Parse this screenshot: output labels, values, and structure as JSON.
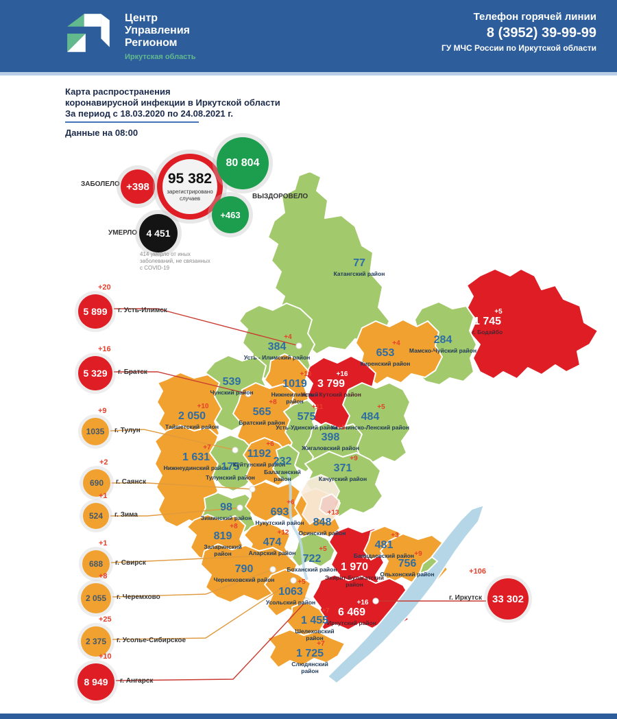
{
  "header": {
    "org_line1": "Центр",
    "org_line2": "Управления",
    "org_line3": "Регионом",
    "org_region": "Иркутская область",
    "hotline_label": "Телефон горячей линии",
    "hotline_phone": "8 (3952) 39-99-99",
    "hotline_org": "ГУ МЧС России по Иркутской области"
  },
  "title": {
    "line1": "Карта распространения",
    "line2": "коронавирусной инфекции в Иркутской области",
    "line3": "За период с 18.03.2020 по 24.08.2021 г.",
    "data_time": "Данные на 08:00"
  },
  "stats": {
    "infected_label": "ЗАБОЛЕЛО",
    "infected_delta": "+398",
    "total_value": "95 382",
    "total_caption": "зарегистрировано случаев",
    "recovered_value": "80 804",
    "recovered_label": "ВЫЗДОРОВЕЛО",
    "recovered_delta": "+463",
    "died_value": "4 451",
    "died_label": "УМЕРЛО",
    "footnote": "414 умерло от иных\nзаболеваний, не связанных\nс COVID-19"
  },
  "cities": [
    {
      "id": "ust_ilimsk",
      "name": "г. Усть-Илимск",
      "value": "5 899",
      "delta": "+20",
      "level": "red"
    },
    {
      "id": "bratsk",
      "name": "г. Братск",
      "value": "5 329",
      "delta": "+16",
      "level": "red"
    },
    {
      "id": "tulun",
      "name": "г. Тулун",
      "value": "1035",
      "delta": "+9",
      "level": "orange"
    },
    {
      "id": "sayansk",
      "name": "г. Саянск",
      "value": "690",
      "delta": "+2",
      "level": "orange"
    },
    {
      "id": "zima",
      "name": "г. Зима",
      "value": "524",
      "delta": "+1",
      "level": "orange"
    },
    {
      "id": "svirsk",
      "name": "г. Свирск",
      "value": "688",
      "delta": "+1",
      "level": "orange"
    },
    {
      "id": "cheremkhovo",
      "name": "г. Черемхово",
      "value": "2 055",
      "delta": "+8",
      "level": "orange"
    },
    {
      "id": "usolye_sibirskoe",
      "name": "г. Усолье-Сибирское",
      "value": "2 375",
      "delta": "+25",
      "level": "orange"
    },
    {
      "id": "angarsk",
      "name": "г. Ангарск",
      "value": "8 949",
      "delta": "+10",
      "level": "red"
    },
    {
      "id": "irkutsk",
      "name": "г. Иркутск",
      "value": "33 302",
      "delta": "+106",
      "level": "red"
    }
  ],
  "districts": [
    {
      "id": "katangsky",
      "name": "Катангский район",
      "value": "77",
      "delta": "",
      "level": "green"
    },
    {
      "id": "bodaibinsky",
      "name": "г. Бодайбо",
      "value": "1 745",
      "delta": "+5",
      "level": "red"
    },
    {
      "id": "mamsko_chuisky",
      "name": "Мамско-Чуйский район",
      "value": "284",
      "delta": "",
      "level": "green"
    },
    {
      "id": "kirensky",
      "name": "Киренский район",
      "value": "653",
      "delta": "+4",
      "level": "orange"
    },
    {
      "id": "ust_ilimsky",
      "name": "Усть - Илимский район",
      "value": "384",
      "delta": "+4",
      "level": "green"
    },
    {
      "id": "chunsky",
      "name": "Чунский район",
      "value": "539",
      "delta": "",
      "level": "green"
    },
    {
      "id": "nizhneilimsky",
      "name": "Нижнеилимский район",
      "value": "1019",
      "delta": "+10",
      "level": "orange"
    },
    {
      "id": "ust_kutsky",
      "name": "Усть - Кутский район",
      "value": "3 799",
      "delta": "+16",
      "level": "red"
    },
    {
      "id": "kazachinsko_lensky",
      "name": "Казачинско-Ленский район",
      "value": "484",
      "delta": "+5",
      "level": "green"
    },
    {
      "id": "taishetsky",
      "name": "Тайшетский район",
      "value": "2 050",
      "delta": "+10",
      "level": "orange"
    },
    {
      "id": "bratsky",
      "name": "Братский район",
      "value": "565",
      "delta": "+8",
      "level": "orange"
    },
    {
      "id": "ust_udinsky",
      "name": "Усть-Удинский район",
      "value": "575",
      "delta": "+11",
      "level": "green"
    },
    {
      "id": "zhigalovsky",
      "name": "Жигаловский район",
      "value": "398",
      "delta": "+5",
      "level": "green"
    },
    {
      "id": "kachugsky",
      "name": "Качугский район",
      "value": "371",
      "delta": "+9",
      "level": "green"
    },
    {
      "id": "nizhneudinsky",
      "name": "Нижнеудинский район",
      "value": "1 631",
      "delta": "+7",
      "level": "orange"
    },
    {
      "id": "tulunsky",
      "name": "Тулунский район",
      "value": "175",
      "delta": "",
      "level": "green"
    },
    {
      "id": "kuitunsky",
      "name": "Куйтунский район",
      "value": "1192",
      "delta": "+6",
      "level": "orange"
    },
    {
      "id": "balagansky",
      "name": "Балаганский район",
      "value": "232",
      "delta": "",
      "level": "green"
    },
    {
      "id": "ziminsky",
      "name": "Зиминский район",
      "value": "98",
      "delta": "",
      "level": "green"
    },
    {
      "id": "nukutsky",
      "name": "Нукутский район",
      "value": "693",
      "delta": "+6",
      "level": "orange"
    },
    {
      "id": "osinsky",
      "name": "Осинский район",
      "value": "848",
      "delta": "+13",
      "level": "orange"
    },
    {
      "id": "zalarinsky",
      "name": "Заларинский район",
      "value": "819",
      "delta": "+8",
      "level": "orange"
    },
    {
      "id": "alarsky",
      "name": "Аларский район",
      "value": "474",
      "delta": "+12",
      "level": "orange"
    },
    {
      "id": "bokhansky",
      "name": "Боханский район",
      "value": "722",
      "delta": "+5",
      "level": "green"
    },
    {
      "id": "ekhirit_bulagatsky",
      "name": "Эхирит-Булагатский район",
      "value": "1 970",
      "delta": "+9",
      "level": "red"
    },
    {
      "id": "bayandaevsky",
      "name": "Баяндаевский район",
      "value": "481",
      "delta": "+3",
      "level": "orange"
    },
    {
      "id": "olkhonsky",
      "name": "Ольхонский район",
      "value": "756",
      "delta": "+9",
      "level": "orange"
    },
    {
      "id": "cheremkhovsky",
      "name": "Черемховский район",
      "value": "790",
      "delta": "",
      "level": "orange"
    },
    {
      "id": "usolsky",
      "name": "Усольский район",
      "value": "1063",
      "delta": "+5",
      "level": "orange"
    },
    {
      "id": "irkutsky",
      "name": "Иркутский район",
      "value": "6 469",
      "delta": "+16",
      "level": "red"
    },
    {
      "id": "shelekhovsky",
      "name": "Шелеховский район",
      "value": "1 455",
      "delta": "+7",
      "level": "orange"
    },
    {
      "id": "slyudyansky",
      "name": "Слюдянский район",
      "value": "1 725",
      "delta": "+7",
      "level": "orange"
    }
  ],
  "colors": {
    "green": "#a2c96b",
    "orange": "#f0a12f",
    "red": "#df1d25",
    "header_blue": "#2d5d9b",
    "teal": "#62b98e",
    "stat_green": "#1d9e4e",
    "value_blue": "#2e6da4",
    "delta_red": "#e6402d",
    "lake_blue": "#b5d6e6"
  }
}
